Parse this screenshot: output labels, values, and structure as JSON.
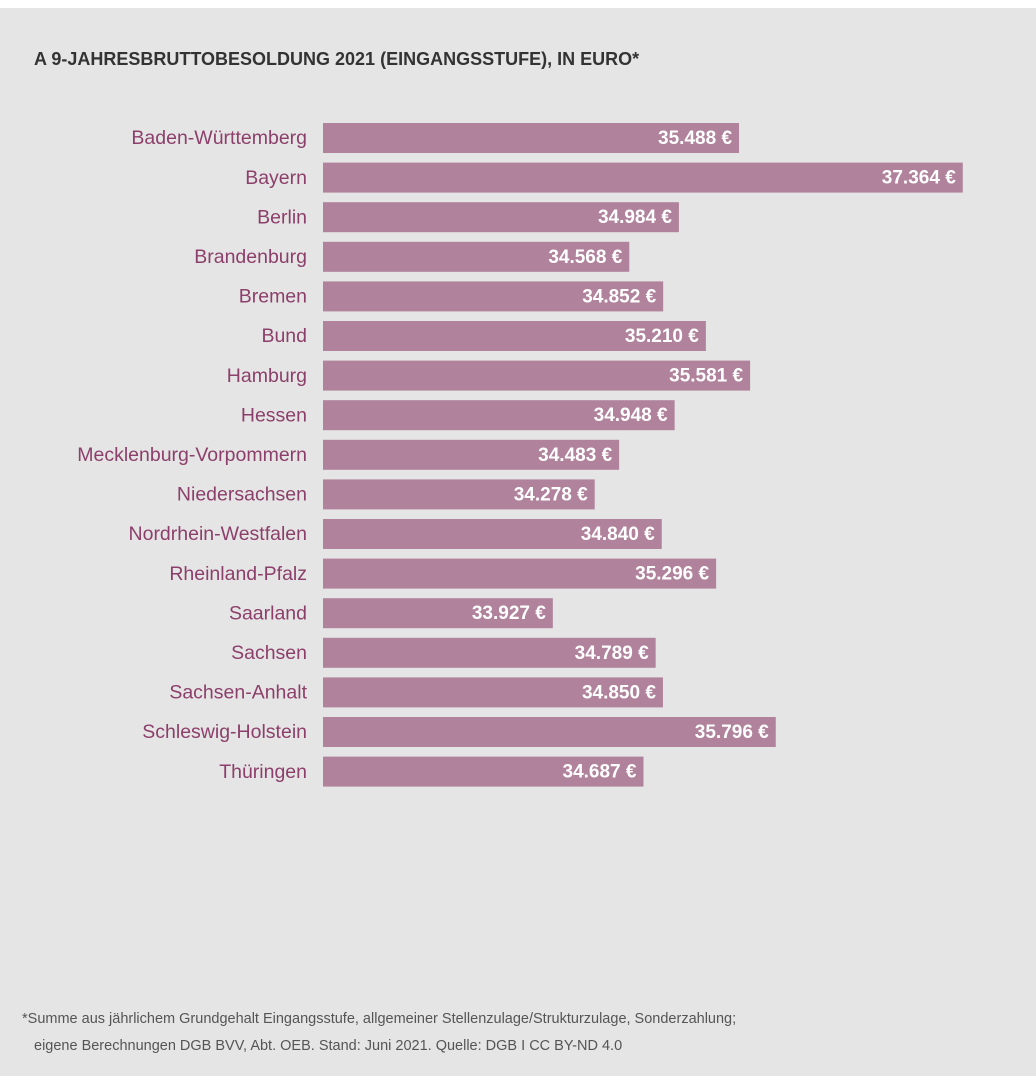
{
  "chart_data": {
    "type": "bar",
    "orientation": "horizontal",
    "title": "A 9-JAHRESBRUTTOBESOLDUNG 2021 (EINGANGSSTUFE), IN EURO*",
    "categories": [
      "Baden-Württemberg",
      "Bayern",
      "Berlin",
      "Brandenburg",
      "Bremen",
      "Bund",
      "Hamburg",
      "Hessen",
      "Mecklenburg-Vorpommern",
      "Niedersachsen",
      "Nordrhein-Westfalen",
      "Rheinland-Pfalz",
      "Saarland",
      "Sachsen",
      "Sachsen-Anhalt",
      "Schleswig-Holstein",
      "Thüringen"
    ],
    "values": [
      35488,
      37364,
      34984,
      34568,
      34852,
      35210,
      35581,
      34948,
      34483,
      34278,
      34840,
      35296,
      33927,
      34789,
      34850,
      35796,
      34687
    ],
    "value_labels": [
      "35.488 €",
      "37.364 €",
      "34.984 €",
      "34.568 €",
      "34.852 €",
      "35.210 €",
      "35.581 €",
      "34.948 €",
      "34.483 €",
      "34.278 €",
      "34.840 €",
      "35.296 €",
      "33.927 €",
      "34.789 €",
      "34.850 €",
      "35.796 €",
      "34.687 €"
    ],
    "color": "#b0829b",
    "xlim": [
      32000,
      37500
    ],
    "footnote": [
      "*Summe aus jährlichem Grundgehalt Eingangsstufe, allgemeiner Stellenzulage/Strukturzulage, Sonderzahlung;",
      "eigene Berechnungen DGB BVV, Abt. OEB. Stand: Juni 2021. Quelle: DGB I CC BY-ND 4.0"
    ]
  }
}
